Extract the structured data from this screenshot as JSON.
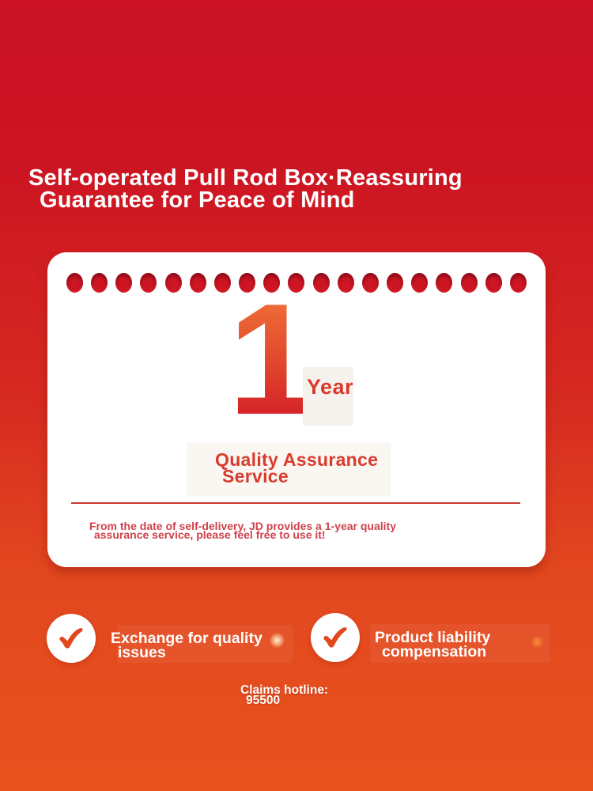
{
  "header": {
    "title_line1": "Self-operated Pull Rod Box·Reassuring",
    "title_line2": "Guarantee for Peace of Mind"
  },
  "card": {
    "dots_count": 19,
    "number": "1",
    "unit": "Year",
    "service_line1": "Quality Assurance",
    "service_line2": "Service",
    "note_line1": "From the date of self-delivery, JD provides a 1-year quality",
    "note_line2": "assurance service, please feel free to use it!"
  },
  "badges": [
    {
      "icon": "checkmark-icon",
      "line1": "Exchange for quality",
      "line2": "issues"
    },
    {
      "icon": "checkmark-icon",
      "line1": "Product liability",
      "line2": "compensation"
    }
  ],
  "hotline": {
    "label": "Claims hotline:",
    "number": "95500"
  },
  "colors": {
    "bg_top": "#ca1126",
    "bg_bottom": "#e8521e",
    "number_gradient_top": "#f2793a",
    "number_gradient_bottom": "#d01127",
    "accent_red_text": "#d93b2c",
    "note_red": "#cf424b",
    "check_red": "#e2481e",
    "card_white": "#ffffff"
  }
}
